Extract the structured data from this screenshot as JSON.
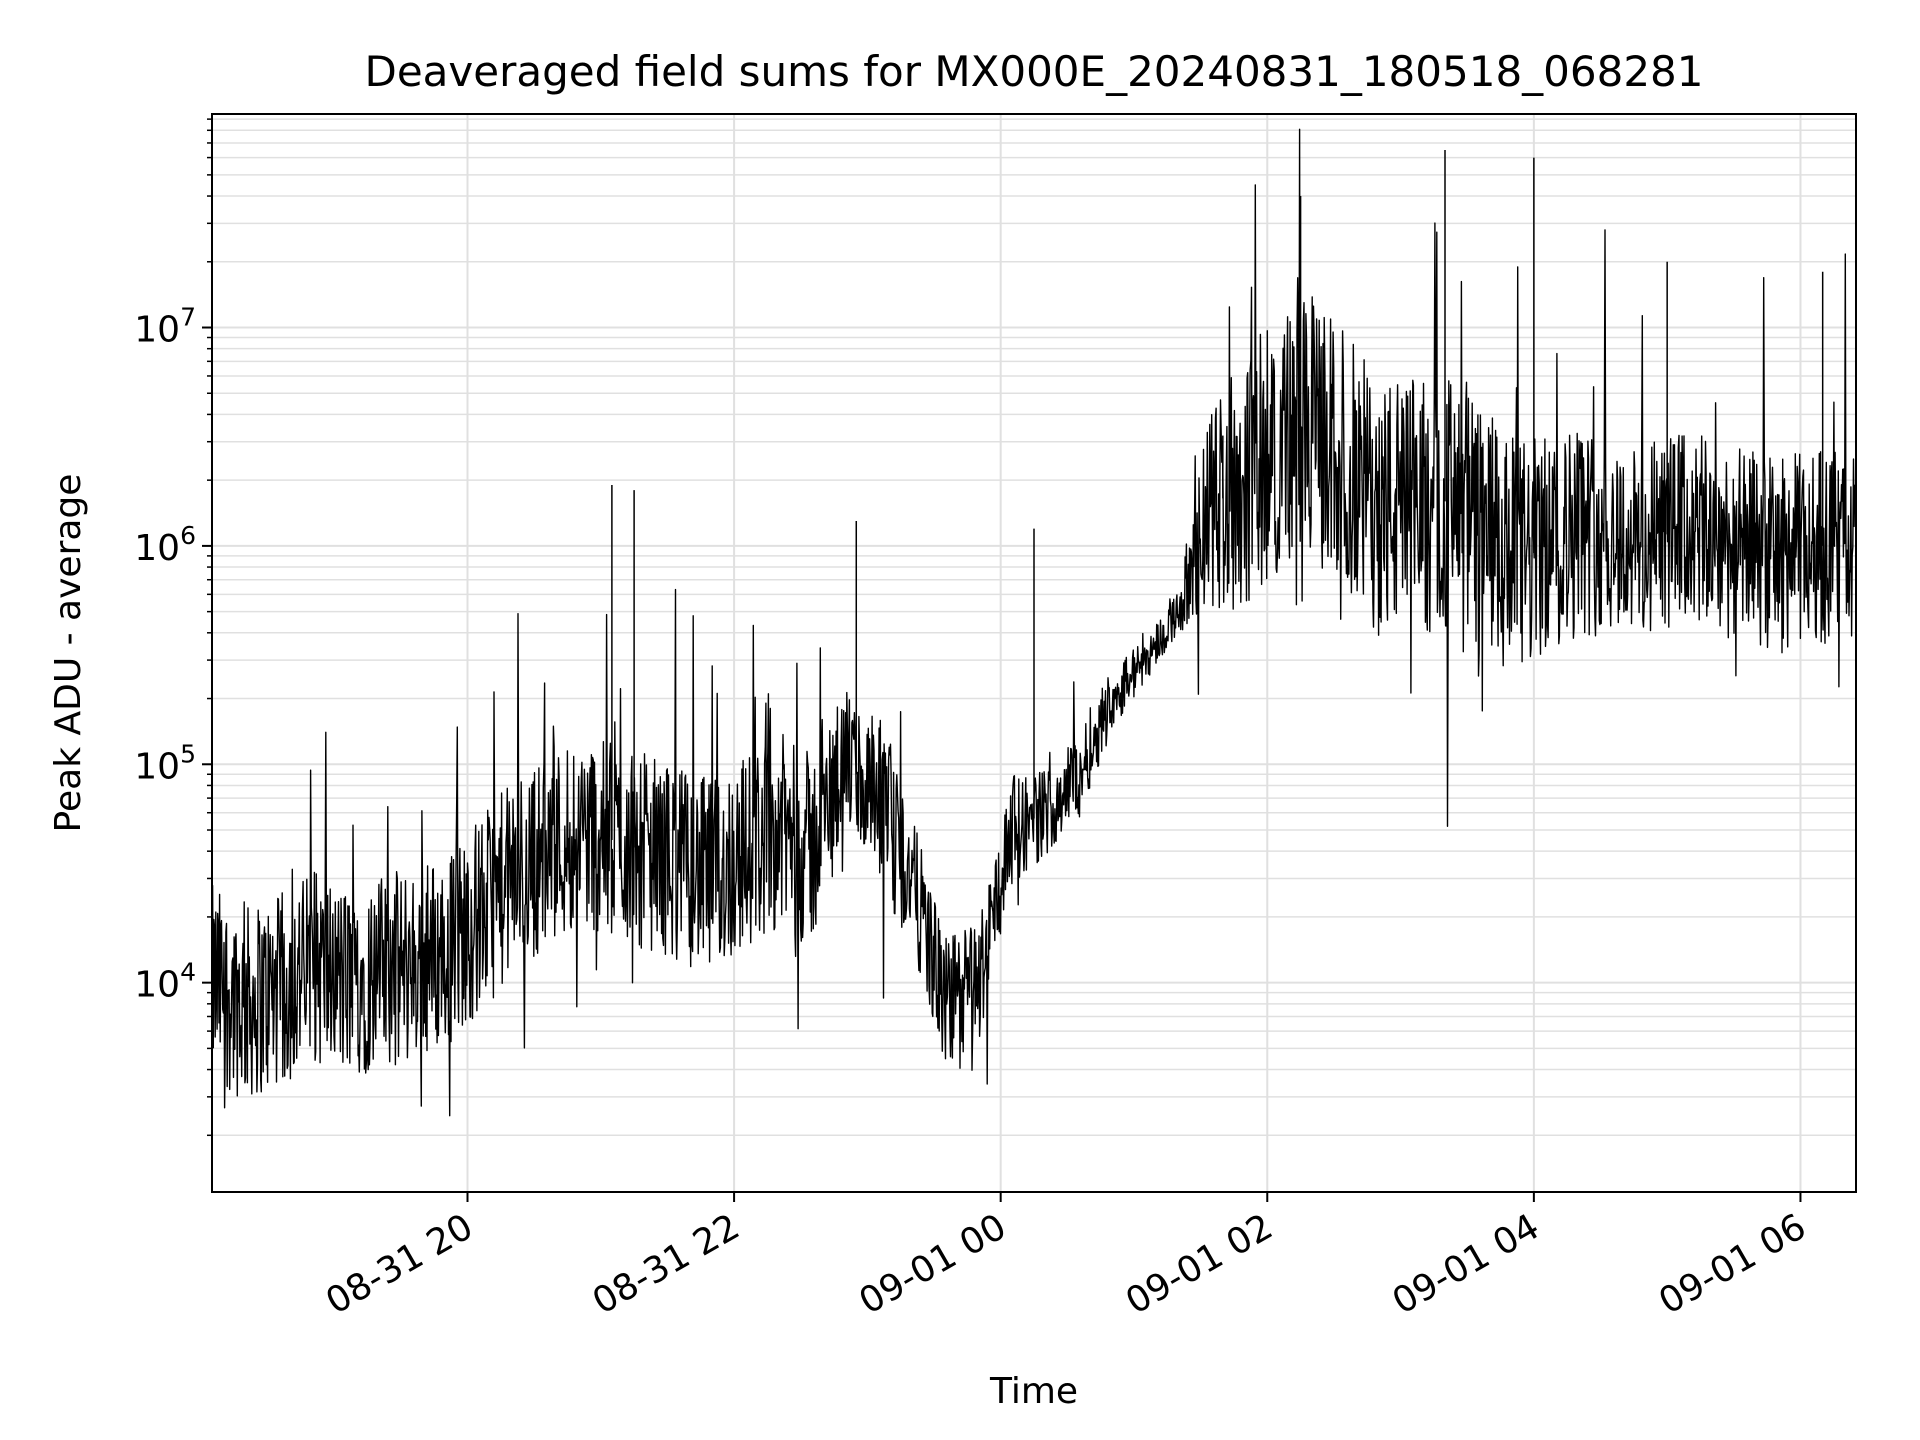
{
  "chart_data": {
    "type": "line",
    "title": "Deaveraged field sums for MX000E_20240831_180518_068281",
    "xlabel": "Time",
    "ylabel": "Peak ADU - average",
    "y_scale": "log",
    "ylim": [
      1100,
      95000000
    ],
    "xlim": [
      "2024-08-31 18:05",
      "2024-09-01 06:25"
    ],
    "grid": true,
    "grid_color": "#e0e0e0",
    "line_color": "#000000",
    "x_tick_labels": [
      "08-31 20",
      "08-31 22",
      "09-01 00",
      "09-01 02",
      "09-01 04",
      "09-01 06"
    ],
    "x_ticks": [
      "2024-08-31 20:00",
      "2024-08-31 22:00",
      "2024-09-01 00:00",
      "2024-09-01 02:00",
      "2024-09-01 04:00",
      "2024-09-01 06:00"
    ],
    "y_tick_values": [
      10000,
      100000,
      1000000,
      10000000
    ],
    "y_tick_labels": [
      {
        "base": "10",
        "exp": "4"
      },
      {
        "base": "10",
        "exp": "5"
      },
      {
        "base": "10",
        "exp": "6"
      },
      {
        "base": "10",
        "exp": "7"
      }
    ],
    "series": [
      {
        "x": [
          "2024-08-31 18:05",
          "2024-08-31 18:20",
          "2024-08-31 18:35",
          "2024-08-31 18:50",
          "2024-08-31 19:05",
          "2024-08-31 19:20",
          "2024-08-31 19:35",
          "2024-08-31 19:50",
          "2024-08-31 20:05",
          "2024-08-31 20:20",
          "2024-08-31 20:35",
          "2024-08-31 20:50",
          "2024-08-31 21:05",
          "2024-08-31 21:20",
          "2024-08-31 21:35",
          "2024-08-31 21:50",
          "2024-08-31 22:05",
          "2024-08-31 22:20",
          "2024-08-31 22:35",
          "2024-08-31 22:50",
          "2024-08-31 23:05",
          "2024-08-31 23:20",
          "2024-08-31 23:35",
          "2024-08-31 23:50",
          "2024-09-01 00:05",
          "2024-09-01 00:20",
          "2024-09-01 00:35",
          "2024-09-01 00:50",
          "2024-09-01 01:05",
          "2024-09-01 01:20",
          "2024-09-01 01:35",
          "2024-09-01 01:50",
          "2024-09-01 02:05",
          "2024-09-01 02:20",
          "2024-09-01 02:35",
          "2024-09-01 02:50",
          "2024-09-01 03:05",
          "2024-09-01 03:20",
          "2024-09-01 03:35",
          "2024-09-01 03:50",
          "2024-09-01 04:05",
          "2024-09-01 04:20",
          "2024-09-01 04:35",
          "2024-09-01 04:50",
          "2024-09-01 05:05",
          "2024-09-01 05:20",
          "2024-09-01 05:35",
          "2024-09-01 05:50",
          "2024-09-01 06:05",
          "2024-09-01 06:20"
        ],
        "y": [
          10000,
          8000,
          9000,
          12000,
          10000,
          11000,
          12000,
          14000,
          20000,
          30000,
          40000,
          50000,
          45000,
          40000,
          35000,
          30000,
          40000,
          50000,
          40000,
          110000,
          60000,
          30000,
          8000,
          10000,
          50000,
          60000,
          90000,
          200000,
          300000,
          500000,
          1500000,
          2000000,
          3000000,
          3500000,
          2500000,
          1500000,
          1500000,
          1600000,
          1200000,
          800000,
          1000000,
          1200000,
          1100000,
          1000000,
          1200000,
          1100000,
          1000000,
          900000,
          1000000,
          1000000
        ]
      }
    ],
    "noise_level_log10": [
      0.45,
      0.45,
      0.45,
      0.45,
      0.45,
      0.45,
      0.45,
      0.45,
      0.45,
      0.45,
      0.45,
      0.45,
      0.45,
      0.45,
      0.45,
      0.45,
      0.45,
      0.45,
      0.45,
      0.3,
      0.45,
      0.3,
      0.3,
      0.3,
      0.25,
      0.2,
      0.2,
      0.15,
      0.1,
      0.1,
      0.5,
      0.6,
      0.6,
      0.6,
      0.6,
      0.6,
      0.6,
      0.6,
      0.6,
      0.6,
      0.5,
      0.5,
      0.45,
      0.45,
      0.45,
      0.45,
      0.45,
      0.45,
      0.45,
      0.45
    ],
    "spikes": [
      {
        "x": "2024-08-31 21:05",
        "y": 1900000
      },
      {
        "x": "2024-08-31 21:15",
        "y": 1800000
      },
      {
        "x": "2024-08-31 22:55",
        "y": 1300000
      },
      {
        "x": "2024-09-01 00:15",
        "y": 1200000
      },
      {
        "x": "2024-09-01 01:40",
        "y": 3200000
      },
      {
        "x": "2024-09-01 02:15",
        "y": 40000000
      },
      {
        "x": "2024-09-01 03:20",
        "y": 65000000
      },
      {
        "x": "2024-09-01 04:00",
        "y": 60000000
      },
      {
        "x": "2024-09-01 05:00",
        "y": 20000000
      },
      {
        "x": "2024-09-01 06:10",
        "y": 18000000
      }
    ]
  }
}
